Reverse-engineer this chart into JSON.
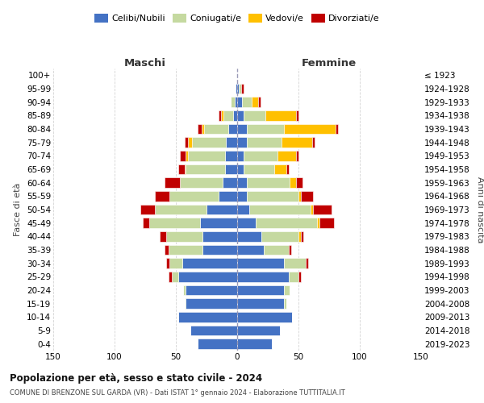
{
  "age_groups": [
    "0-4",
    "5-9",
    "10-14",
    "15-19",
    "20-24",
    "25-29",
    "30-34",
    "35-39",
    "40-44",
    "45-49",
    "50-54",
    "55-59",
    "60-64",
    "65-69",
    "70-74",
    "75-79",
    "80-84",
    "85-89",
    "90-94",
    "95-99",
    "100+"
  ],
  "birth_years": [
    "2019-2023",
    "2014-2018",
    "2009-2013",
    "2004-2008",
    "1999-2003",
    "1994-1998",
    "1989-1993",
    "1984-1988",
    "1979-1983",
    "1974-1978",
    "1969-1973",
    "1964-1968",
    "1959-1963",
    "1954-1958",
    "1949-1953",
    "1944-1948",
    "1939-1943",
    "1934-1938",
    "1929-1933",
    "1924-1928",
    "≤ 1923"
  ],
  "colors": {
    "celibe": "#4472c4",
    "coniugato": "#c5d9a0",
    "vedovo": "#ffc000",
    "divorziato": "#c00000"
  },
  "maschi": {
    "celibe": [
      32,
      38,
      48,
      42,
      42,
      48,
      45,
      28,
      28,
      30,
      25,
      15,
      12,
      10,
      10,
      9,
      7,
      3,
      2,
      1,
      0
    ],
    "coniugato": [
      0,
      0,
      0,
      1,
      2,
      5,
      10,
      28,
      30,
      42,
      42,
      40,
      35,
      32,
      30,
      28,
      20,
      8,
      3,
      0,
      0
    ],
    "vedovo": [
      0,
      0,
      0,
      0,
      0,
      0,
      0,
      0,
      0,
      0,
      0,
      0,
      0,
      1,
      2,
      3,
      2,
      2,
      0,
      0,
      0
    ],
    "divorziato": [
      0,
      0,
      0,
      0,
      0,
      3,
      3,
      3,
      5,
      5,
      12,
      12,
      12,
      5,
      5,
      3,
      3,
      2,
      0,
      0,
      0
    ]
  },
  "femmine": {
    "celibe": [
      28,
      35,
      45,
      38,
      38,
      42,
      38,
      22,
      20,
      15,
      10,
      8,
      8,
      5,
      5,
      8,
      8,
      5,
      4,
      1,
      0
    ],
    "coniugato": [
      0,
      0,
      0,
      2,
      5,
      8,
      18,
      20,
      30,
      50,
      50,
      42,
      35,
      25,
      28,
      28,
      30,
      18,
      8,
      2,
      0
    ],
    "vedovo": [
      0,
      0,
      0,
      0,
      0,
      0,
      0,
      0,
      2,
      2,
      2,
      2,
      5,
      10,
      15,
      25,
      42,
      25,
      5,
      0,
      0
    ],
    "divorziato": [
      0,
      0,
      0,
      0,
      0,
      2,
      2,
      2,
      2,
      12,
      15,
      10,
      5,
      2,
      2,
      2,
      2,
      2,
      2,
      2,
      0
    ]
  },
  "xlim": 150,
  "title": "Popolazione per età, sesso e stato civile - 2024",
  "subtitle": "COMUNE DI BRENZONE SUL GARDA (VR) - Dati ISTAT 1° gennaio 2024 - Elaborazione TUTTITALIA.IT",
  "ylabel_left": "Fasce di età",
  "ylabel_right": "Anni di nascita",
  "xlabel_maschi": "Maschi",
  "xlabel_femmine": "Femmine",
  "legend_labels": [
    "Celibi/Nubili",
    "Coniugati/e",
    "Vedovi/e",
    "Divorziati/e"
  ],
  "background_color": "#ffffff",
  "grid_color": "#c8c8c8"
}
